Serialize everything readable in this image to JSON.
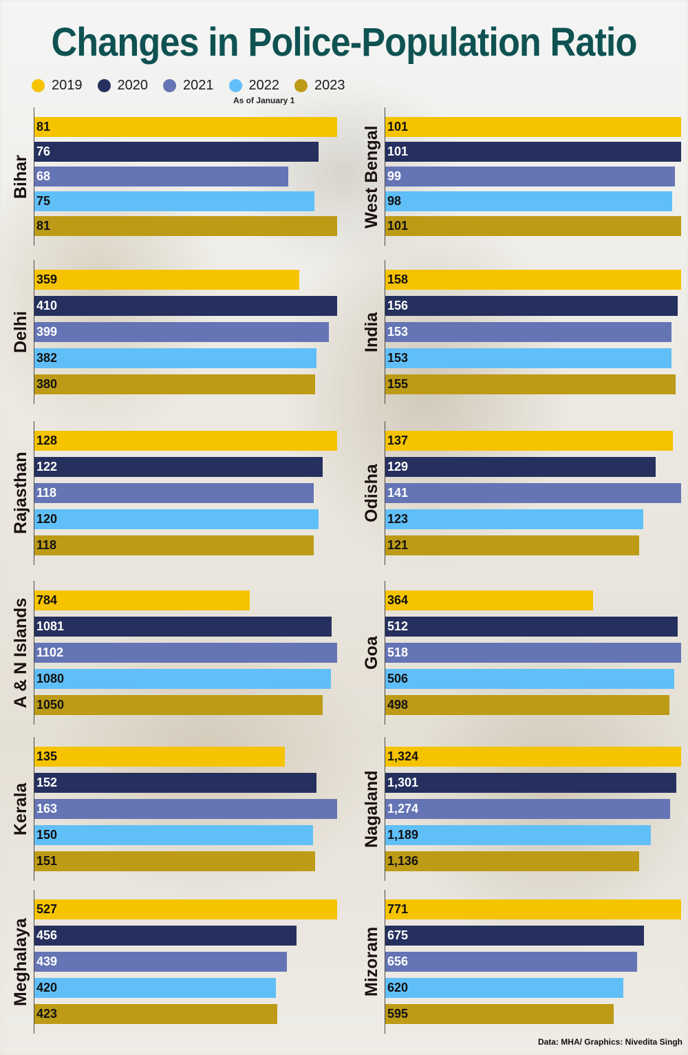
{
  "title": "Changes in Police-Population Ratio",
  "legend_note": "As of January 1",
  "source": "Data: MHA/ Graphics: Nivedita Singh",
  "colors": {
    "2019": "#f5c300",
    "2020": "#25305e",
    "2021": "#6474b4",
    "2022": "#61bff8",
    "2023": "#bd9b17"
  },
  "chart_data": {
    "type": "bar",
    "orientation": "horizontal",
    "categories": [
      "2019",
      "2020",
      "2021",
      "2022",
      "2023"
    ],
    "legend": [
      "2019",
      "2020",
      "2021",
      "2022",
      "2023"
    ],
    "panels": [
      {
        "name": "Bihar",
        "labels": [
          "81",
          "76",
          "68",
          "75",
          "81"
        ],
        "values": [
          81,
          76,
          68,
          75,
          81
        ]
      },
      {
        "name": "West Bengal",
        "labels": [
          "101",
          "101",
          "99",
          "98",
          "101"
        ],
        "values": [
          101,
          101,
          99,
          98,
          101
        ]
      },
      {
        "name": "Delhi",
        "labels": [
          "359",
          "410",
          "399",
          "382",
          "380"
        ],
        "values": [
          359,
          410,
          399,
          382,
          380
        ]
      },
      {
        "name": "India",
        "labels": [
          "158",
          "156",
          "153",
          "153",
          "155"
        ],
        "values": [
          158,
          156,
          153,
          153,
          155
        ]
      },
      {
        "name": "Rajasthan",
        "labels": [
          "128",
          "122",
          "118",
          "120",
          "118"
        ],
        "values": [
          128,
          122,
          118,
          120,
          118
        ]
      },
      {
        "name": "Odisha",
        "labels": [
          "137",
          "129",
          "141",
          "123",
          "121"
        ],
        "values": [
          137,
          129,
          141,
          123,
          121
        ]
      },
      {
        "name": "A & N Islands",
        "labels": [
          "784",
          "1081",
          "1102",
          "1080",
          "1050"
        ],
        "values": [
          784,
          1081,
          1102,
          1080,
          1050
        ]
      },
      {
        "name": "Goa",
        "labels": [
          "364",
          "512",
          "518",
          "506",
          "498"
        ],
        "values": [
          364,
          512,
          518,
          506,
          498
        ]
      },
      {
        "name": "Kerala",
        "labels": [
          "135",
          "152",
          "163",
          "150",
          "151"
        ],
        "values": [
          135,
          152,
          163,
          150,
          151
        ]
      },
      {
        "name": "Nagaland",
        "labels": [
          "1,324",
          "1,301",
          "1,274",
          "1,189",
          "1,136"
        ],
        "values": [
          1324,
          1301,
          1274,
          1189,
          1136
        ]
      },
      {
        "name": "Meghalaya",
        "labels": [
          "527",
          "456",
          "439",
          "420",
          "423"
        ],
        "values": [
          527,
          456,
          439,
          420,
          423
        ]
      },
      {
        "name": "Mizoram",
        "labels": [
          "771",
          "675",
          "656",
          "620",
          "595"
        ],
        "values": [
          771,
          675,
          656,
          620,
          595
        ]
      }
    ]
  }
}
